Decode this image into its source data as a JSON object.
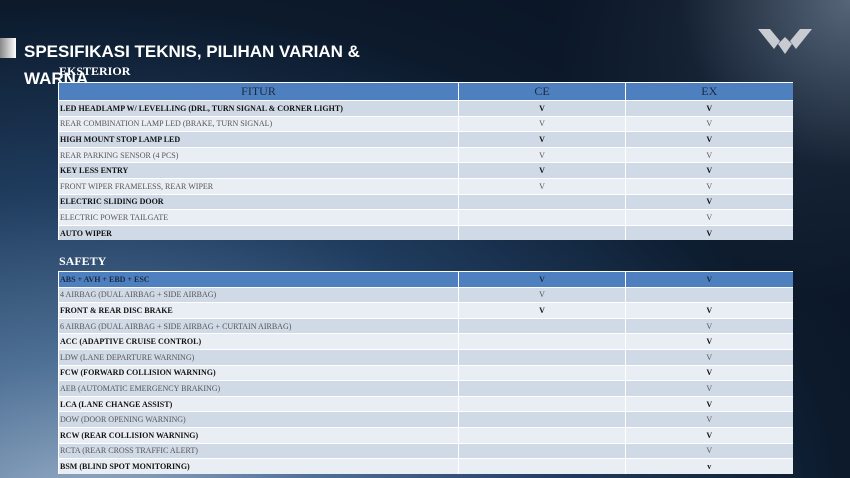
{
  "title": "SPESIFIKASI TEKNIS, PILIHAN VARIAN & WARNA",
  "logo": "wuling-logo",
  "eksterior": {
    "label": "EKSTERIOR",
    "headers": [
      "FITUR",
      "CE",
      "EX"
    ],
    "rows": [
      {
        "f": "LED HEADLAMP W/ LEVELLING (DRL, TURN SIGNAL & CORNER LIGHT)",
        "ce": "V",
        "ex": "V"
      },
      {
        "f": "REAR COMBINATION LAMP LED (BRAKE, TURN SIGNAL)",
        "ce": "V",
        "ex": "V"
      },
      {
        "f": "HIGH MOUNT STOP LAMP LED",
        "ce": "V",
        "ex": "V"
      },
      {
        "f": "REAR PARKING SENSOR (4 PCS)",
        "ce": "V",
        "ex": "V"
      },
      {
        "f": "KEY LESS ENTRY",
        "ce": "V",
        "ex": "V"
      },
      {
        "f": "FRONT WIPER FRAMELESS, REAR WIPER",
        "ce": "V",
        "ex": "V"
      },
      {
        "f": "ELECTRIC SLIDING DOOR",
        "ce": "",
        "ex": "V"
      },
      {
        "f": "ELECTRIC POWER TAILGATE",
        "ce": "",
        "ex": "V"
      },
      {
        "f": "AUTO WIPER",
        "ce": "",
        "ex": "V"
      }
    ]
  },
  "safety": {
    "label": "SAFETY",
    "rows": [
      {
        "f": "ABS + AVH + EBD + ESC",
        "ce": "V",
        "ex": "V"
      },
      {
        "f": "4 AIRBAG (DUAL AIRBAG + SIDE AIRBAG)",
        "ce": "V",
        "ex": ""
      },
      {
        "f": "FRONT & REAR DISC BRAKE",
        "ce": "V",
        "ex": "V"
      },
      {
        "f": "6 AIRBAG (DUAL AIRBAG + SIDE AIRBAG + CURTAIN AIRBAG)",
        "ce": "",
        "ex": "V"
      },
      {
        "f": "ACC (ADAPTIVE CRUISE CONTROL)",
        "ce": "",
        "ex": "V"
      },
      {
        "f": "LDW (LANE DEPARTURE WARNING)",
        "ce": "",
        "ex": "V"
      },
      {
        "f": "FCW (FORWARD COLLISION WARNING)",
        "ce": "",
        "ex": "V"
      },
      {
        "f": "AEB (AUTOMATIC EMERGENCY BRAKING)",
        "ce": "",
        "ex": "V"
      },
      {
        "f": "LCA (LANE CHANGE ASSIST)",
        "ce": "",
        "ex": "V"
      },
      {
        "f": "DOW (DOOR OPENING WARNING)",
        "ce": "",
        "ex": "V"
      },
      {
        "f": "RCW (REAR COLLISION WARNING)",
        "ce": "",
        "ex": "V"
      },
      {
        "f": "RCTA (REAR CROSS TRAFFIC ALERT)",
        "ce": "",
        "ex": "V"
      },
      {
        "f": "BSM (BLIND SPOT MONITORING)",
        "ce": "",
        "ex": "v"
      }
    ]
  }
}
